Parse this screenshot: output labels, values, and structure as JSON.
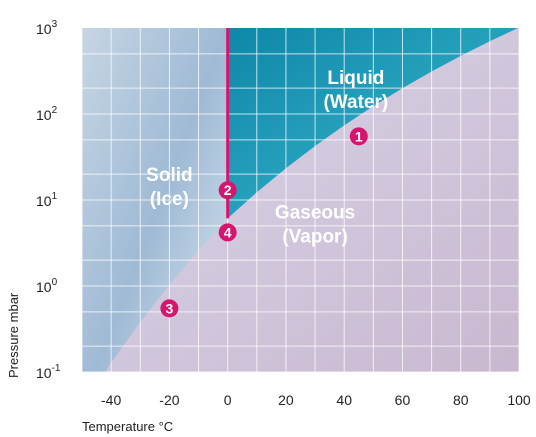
{
  "chart_data": {
    "type": "area",
    "xlabel": "Temperature °C",
    "ylabel": "Pressure mbar",
    "x_ticks": [
      -40,
      -20,
      0,
      20,
      40,
      60,
      80,
      100
    ],
    "x_range": [
      -50,
      100
    ],
    "y_scale": "log",
    "y_range": [
      0.1,
      1000
    ],
    "y_ticks": [
      {
        "value": 0.1,
        "base": "10",
        "exp": "-1"
      },
      {
        "value": 1,
        "base": "10",
        "exp": "0"
      },
      {
        "value": 10,
        "base": "10",
        "exp": "1"
      },
      {
        "value": 100,
        "base": "10",
        "exp": "2"
      },
      {
        "value": 1000,
        "base": "10",
        "exp": "3"
      }
    ],
    "grid": true,
    "regions": [
      {
        "line1": "Solid",
        "line2": "(Ice)",
        "x": -20,
        "y": 15,
        "color": "#9cb9d6"
      },
      {
        "line1": "Liquid",
        "line2": "(Water)",
        "x": 44,
        "y": 200,
        "color": "#2497b5"
      },
      {
        "line1": "Gaseous",
        "line2": "(Vapor)",
        "x": 30,
        "y": 5.5,
        "color": "#b8b4d4"
      }
    ],
    "boundaries": {
      "sublimation": [
        [
          -50,
          0.037
        ],
        [
          -40,
          0.128
        ],
        [
          -30,
          0.38
        ],
        [
          -20,
          1.03
        ],
        [
          -10,
          2.6
        ],
        [
          0,
          6.11
        ]
      ],
      "vaporization": [
        [
          0,
          6.11
        ],
        [
          10,
          12.3
        ],
        [
          20,
          23.4
        ],
        [
          30,
          42.4
        ],
        [
          40,
          73.8
        ],
        [
          50,
          123.4
        ],
        [
          60,
          199.3
        ],
        [
          70,
          311.8
        ],
        [
          80,
          473.6
        ],
        [
          90,
          701.1
        ],
        [
          100,
          1013.25
        ]
      ],
      "melting_x": 0
    },
    "markers": [
      {
        "label": "1",
        "x": 45,
        "y": 55
      },
      {
        "label": "2",
        "x": 0,
        "y": 13
      },
      {
        "label": "3",
        "x": -20,
        "y": 0.55
      },
      {
        "label": "4",
        "x": 0,
        "y": 4.2
      }
    ],
    "colors": {
      "marker": "#d6156f",
      "melting_line": "#d6156f"
    }
  }
}
